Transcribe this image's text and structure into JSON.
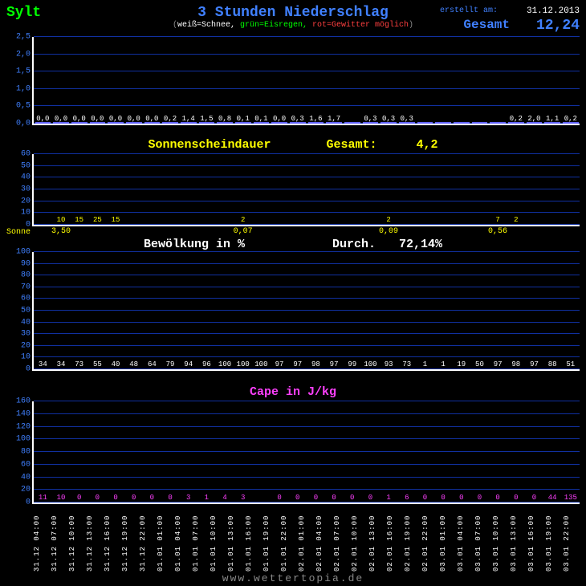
{
  "header": {
    "location": "Sylt",
    "title": "3 Stunden Niederschlag",
    "legend_w": "weiß=Schnee,",
    "legend_g": "grün=Eisregen,",
    "legend_r": "rot=Gewitter möglich",
    "created_label": "erstellt am:",
    "date": "31.12.2013",
    "gesamt_label": "Gesamt",
    "gesamt_value": "12,24"
  },
  "precip": {
    "bg": "#000000",
    "grid_color": "#1030a0",
    "axis_color": "#ffffff",
    "bar_color": "#3030ff",
    "bar_border": "#6060ff",
    "label_color": "#4080ff",
    "value_color": "#ffffff",
    "ymax": 2.5,
    "yticks": [
      0.0,
      0.5,
      1.0,
      1.5,
      2.0,
      2.5
    ],
    "ytick_labels": [
      "0,0",
      "0,5",
      "1,0",
      "1,5",
      "2,0",
      "2,5"
    ],
    "values": [
      0.0,
      0.0,
      0.0,
      0.0,
      0.0,
      0.0,
      0.0,
      0.2,
      1.4,
      1.5,
      0.8,
      0.1,
      0.1,
      0.0,
      0.3,
      1.6,
      1.7,
      0.0,
      0.3,
      0.3,
      0.3,
      0.0,
      0.0,
      0.0,
      0.0,
      0.0,
      0.2,
      2.0,
      1.1,
      0.2
    ],
    "labels": [
      "0,0",
      "0,0",
      "0,0",
      "0,0",
      "0,0",
      "0,0",
      "0,0",
      "0,2",
      "1,4",
      "1,5",
      "0,8",
      "0,1",
      "0,1",
      "0,0",
      "0,3",
      "1,6",
      "1,7",
      "",
      "0,3",
      "0,3",
      "0,3",
      "",
      "",
      "",
      "",
      "",
      "0,2",
      "2,0",
      "1,1",
      "0,2"
    ]
  },
  "sun": {
    "title": "Sonnenscheindauer",
    "gesamt_label": "Gesamt:",
    "gesamt_value": "4,2",
    "bar_color": "#ffff00",
    "ymax": 60,
    "yticks": [
      0,
      10,
      20,
      30,
      40,
      50,
      60
    ],
    "values": [
      0,
      10,
      15,
      25,
      15,
      0,
      0,
      0,
      0,
      0,
      0,
      2,
      0,
      0,
      0,
      0,
      0,
      0,
      0,
      2,
      0,
      0,
      0,
      0,
      0,
      7,
      2,
      0,
      0,
      0
    ],
    "axis_label": "Sonne",
    "bottom_labels": {
      "1": "3,50",
      "11": "0,07",
      "19": "0,09",
      "25": "0,56"
    }
  },
  "cloud": {
    "title": "Bewölkung in %",
    "durch_label": "Durch.",
    "durch_value": "72,14%",
    "bar_top": "#ffffff",
    "bar_bot": "#202020",
    "ymax": 100,
    "yticks": [
      0,
      10,
      20,
      30,
      40,
      50,
      60,
      70,
      80,
      90,
      100
    ],
    "values": [
      34,
      34,
      73,
      55,
      40,
      48,
      64,
      79,
      94,
      96,
      100,
      100,
      100,
      97,
      97,
      98,
      97,
      99,
      100,
      93,
      73,
      1,
      1,
      19,
      50,
      97,
      98,
      97,
      88,
      51
    ],
    "labels": [
      "34",
      "34",
      "73",
      "55",
      "40",
      "48",
      "64",
      "79",
      "94",
      "96",
      "100",
      "100",
      "100",
      "97",
      "97",
      "98",
      "97",
      "99",
      "100",
      "93",
      "73",
      "1",
      "1",
      "19",
      "50",
      "97",
      "98",
      "97",
      "88",
      "51"
    ]
  },
  "cape": {
    "title": "Cape in J/kg",
    "bar_color": "#ff40ff",
    "ymax": 160,
    "yticks": [
      0,
      20,
      40,
      60,
      80,
      100,
      120,
      140,
      160
    ],
    "values": [
      11,
      10,
      0,
      0,
      0,
      0,
      0,
      0,
      3,
      1,
      4,
      3,
      0,
      0,
      0,
      0,
      0,
      0,
      0,
      1,
      6,
      0,
      0,
      0,
      0,
      0,
      0,
      0,
      44,
      135
    ],
    "labels": [
      "11",
      "10",
      "0",
      "0",
      "0",
      "0",
      "0",
      "0",
      "3",
      "1",
      "4",
      "3",
      "",
      "0",
      "0",
      "0",
      "0",
      "0",
      "0",
      "1",
      "6",
      "0",
      "0",
      "0",
      "0",
      "0",
      "0",
      "0",
      "44",
      "135"
    ]
  },
  "xaxis": {
    "labels": [
      "31.12  04:00",
      "31.12  07:00",
      "31.12  10:00",
      "31.12  13:00",
      "31.12  16:00",
      "31.12  19:00",
      "31.12  22:00",
      "01.01  01:00",
      "01.01  04:00",
      "01.01  07:00",
      "01.01  10:00",
      "01.01  13:00",
      "01.01  16:00",
      "01.01  19:00",
      "01.01  22:00",
      "02.01  01:00",
      "02.01  04:00",
      "02.01  07:00",
      "02.01  10:00",
      "02.01  13:00",
      "02.01  16:00",
      "02.01  19:00",
      "02.01  22:00",
      "03.01  01:00",
      "03.01  04:00",
      "03.01  07:00",
      "03.01  10:00",
      "03.01  13:00",
      "03.01  16:00",
      "03.01  19:00",
      "03.01  22:00"
    ]
  },
  "footer": "www.wettertopia.de"
}
